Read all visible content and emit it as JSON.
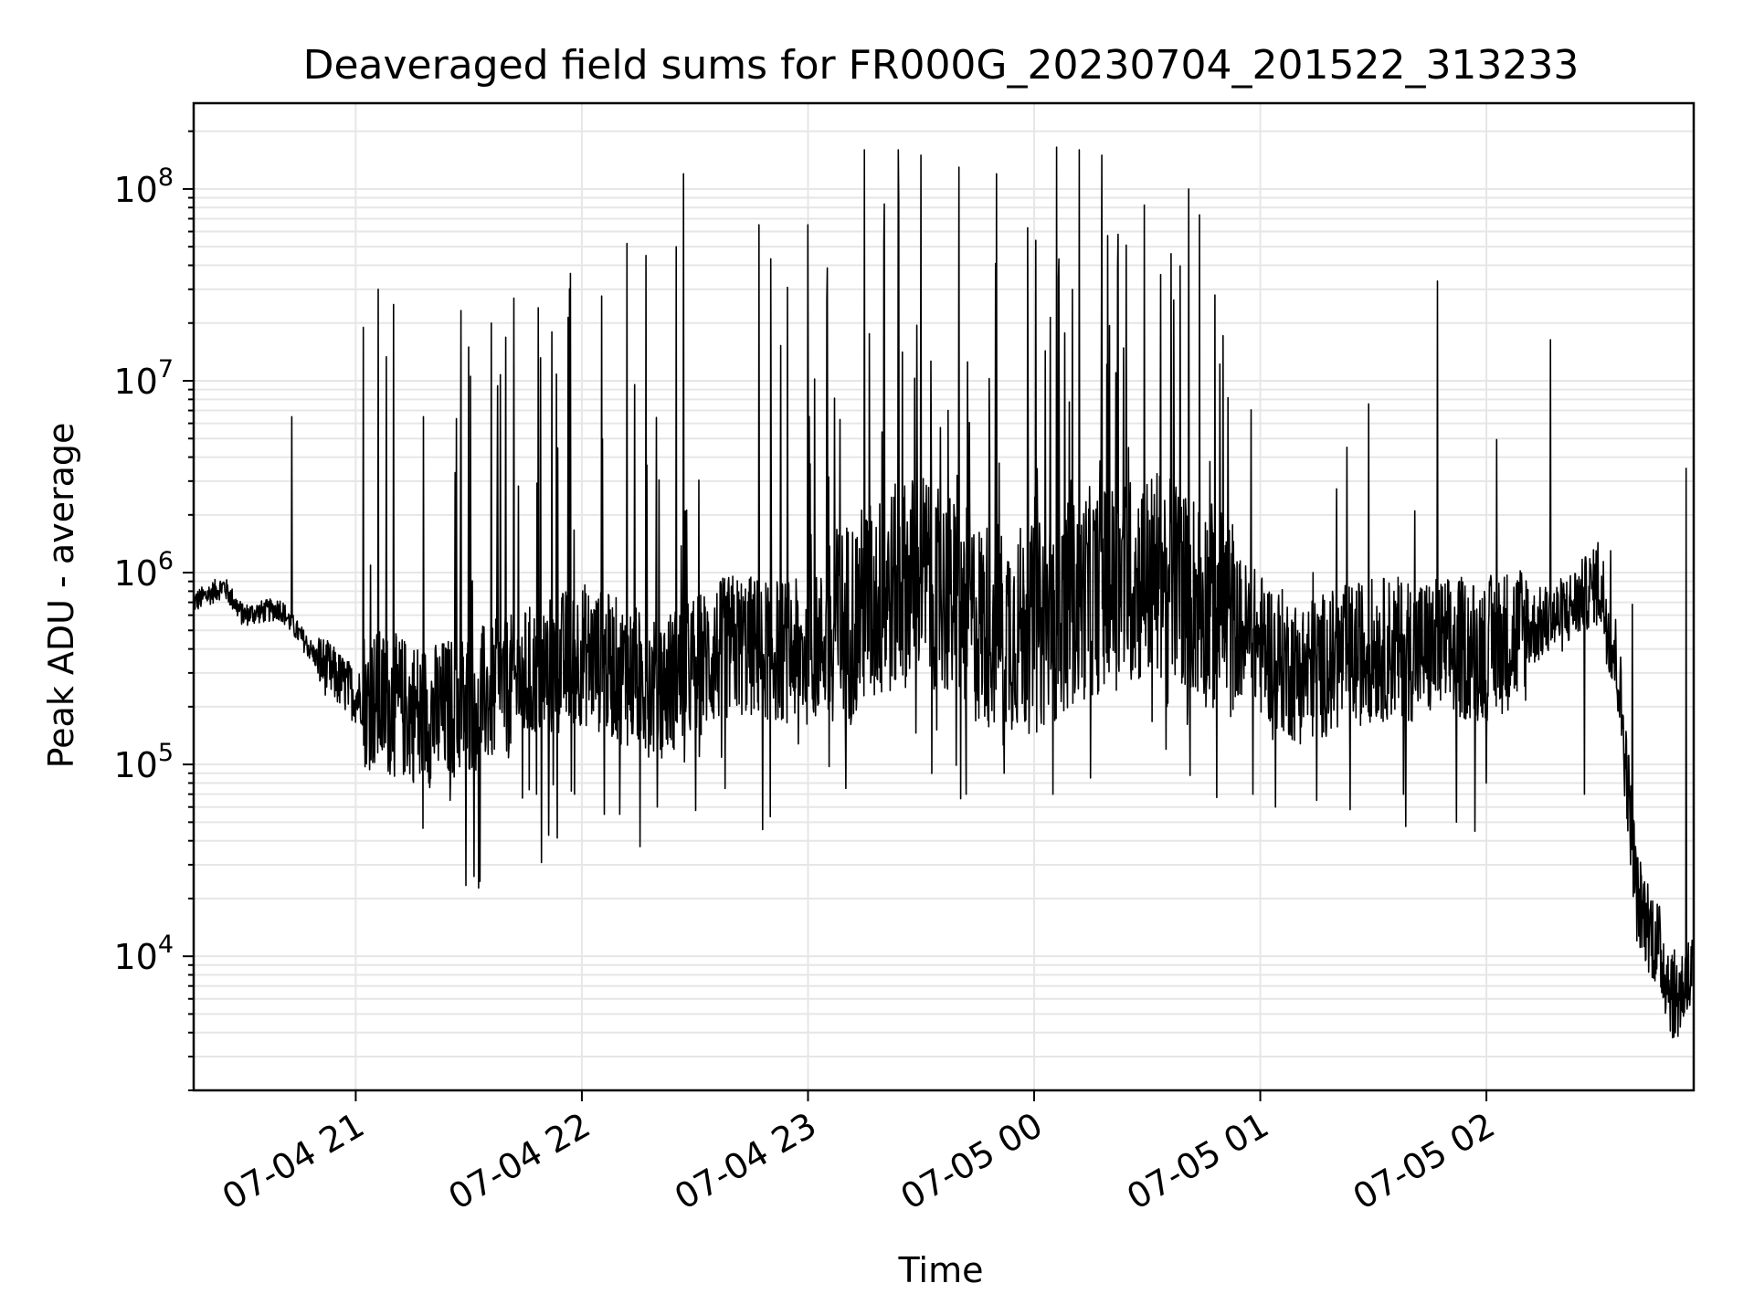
{
  "chart_data": {
    "type": "line",
    "title": "Deaveraged field sums for FR000G_20230704_201522_313233",
    "xlabel": "Time",
    "ylabel": "Peak ADU - average",
    "y_scale": "log",
    "grid": true,
    "line_color": "#000000",
    "x_start": "07-04 20:17",
    "x_end": "07-05 02:55",
    "ylim": [
      2000,
      280000000
    ],
    "x_ticks": [
      {
        "label": "07-04 21",
        "value": "07-04 21:00"
      },
      {
        "label": "07-04 22",
        "value": "07-04 22:00"
      },
      {
        "label": "07-04 23",
        "value": "07-04 23:00"
      },
      {
        "label": "07-05 00",
        "value": "07-05 00:00"
      },
      {
        "label": "07-05 01",
        "value": "07-05 01:00"
      },
      {
        "label": "07-05 02",
        "value": "07-05 02:00"
      }
    ],
    "y_ticks": [
      {
        "base": "10",
        "exp": "4",
        "value": 10000
      },
      {
        "base": "10",
        "exp": "5",
        "value": 100000
      },
      {
        "base": "10",
        "exp": "6",
        "value": 1000000
      },
      {
        "base": "10",
        "exp": "7",
        "value": 10000000
      },
      {
        "base": "10",
        "exp": "8",
        "value": 100000000
      }
    ],
    "series": [
      {
        "baseline": [
          [
            "07-04 20:17",
            700000
          ],
          [
            "07-04 20:25",
            850000
          ],
          [
            "07-04 20:30",
            600000
          ],
          [
            "07-04 20:40",
            650000
          ],
          [
            "07-04 20:50",
            350000
          ],
          [
            "07-04 21:00",
            230000
          ],
          [
            "07-04 21:20",
            180000
          ],
          [
            "07-04 21:40",
            250000
          ],
          [
            "07-04 22:00",
            380000
          ],
          [
            "07-04 22:20",
            250000
          ],
          [
            "07-04 22:40",
            420000
          ],
          [
            "07-04 23:00",
            380000
          ],
          [
            "07-04 23:15",
            650000
          ],
          [
            "07-04 23:30",
            1000000
          ],
          [
            "07-04 23:45",
            550000
          ],
          [
            "07-05 00:00",
            500000
          ],
          [
            "07-05 00:15",
            800000
          ],
          [
            "07-05 00:35",
            1000000
          ],
          [
            "07-05 00:50",
            600000
          ],
          [
            "07-05 01:10",
            300000
          ],
          [
            "07-05 01:30",
            400000
          ],
          [
            "07-05 02:00",
            400000
          ],
          [
            "07-05 02:20",
            600000
          ],
          [
            "07-05 02:30",
            900000
          ],
          [
            "07-05 02:35",
            300000
          ],
          [
            "07-05 02:40",
            20000
          ],
          [
            "07-05 02:45",
            12000
          ],
          [
            "07-05 02:50",
            6000
          ],
          [
            "07-05 02:55",
            8000
          ]
        ],
        "peaks": [
          [
            "07-04 20:43",
            6500000
          ],
          [
            "07-04 21:02",
            19000000
          ],
          [
            "07-04 21:06",
            30000000
          ],
          [
            "07-04 21:10",
            25000000
          ],
          [
            "07-04 21:18",
            6500000
          ],
          [
            "07-04 21:30",
            15000000
          ],
          [
            "07-04 21:36",
            20000000
          ],
          [
            "07-04 21:42",
            27000000
          ],
          [
            "07-04 21:52",
            18000000
          ],
          [
            "07-04 22:06",
            40000000
          ],
          [
            "07-04 22:12",
            52000000
          ],
          [
            "07-04 22:17",
            45000000
          ],
          [
            "07-04 22:25",
            50000000
          ],
          [
            "07-04 22:27",
            120000000
          ],
          [
            "07-04 22:47",
            65000000
          ],
          [
            "07-04 23:00",
            65000000
          ],
          [
            "07-04 23:10",
            140000000
          ],
          [
            "07-04 23:15",
            160000000
          ],
          [
            "07-04 23:24",
            160000000
          ],
          [
            "07-04 23:30",
            150000000
          ],
          [
            "07-04 23:40",
            130000000
          ],
          [
            "07-04 23:50",
            120000000
          ],
          [
            "07-05 00:06",
            165000000
          ],
          [
            "07-05 00:12",
            160000000
          ],
          [
            "07-05 00:18",
            150000000
          ],
          [
            "07-05 00:25",
            130000000
          ],
          [
            "07-05 00:41",
            100000000
          ],
          [
            "07-05 00:48",
            28000000
          ],
          [
            "07-05 00:58",
            9000000
          ],
          [
            "07-05 01:14",
            1000000
          ],
          [
            "07-05 01:23",
            4500000
          ],
          [
            "07-05 01:41",
            2100000
          ],
          [
            "07-05 02:33",
            1300000
          ]
        ],
        "troughs": [
          [
            "07-04 20:50",
            300000
          ],
          [
            "07-04 21:03",
            130000
          ],
          [
            "07-04 21:17",
            90000
          ],
          [
            "07-04 21:25",
            65000
          ],
          [
            "07-04 21:48",
            70000
          ],
          [
            "07-04 21:58",
            70000
          ],
          [
            "07-04 22:06",
            55000
          ],
          [
            "07-04 22:10",
            55000
          ],
          [
            "07-04 22:14",
            55000
          ],
          [
            "07-04 22:20",
            60000
          ],
          [
            "07-04 22:38",
            75000
          ],
          [
            "07-04 22:50",
            70000
          ],
          [
            "07-04 23:10",
            75000
          ],
          [
            "07-04 23:42",
            70000
          ],
          [
            "07-04 23:52",
            90000
          ],
          [
            "07-05 00:05",
            70000
          ],
          [
            "07-05 00:15",
            85000
          ],
          [
            "07-05 00:35",
            120000
          ],
          [
            "07-05 00:58",
            70000
          ],
          [
            "07-05 01:04",
            60000
          ],
          [
            "07-05 01:15",
            65000
          ],
          [
            "07-05 01:38",
            70000
          ],
          [
            "07-05 01:52",
            50000
          ],
          [
            "07-05 02:00",
            80000
          ],
          [
            "07-05 02:26",
            70000
          ],
          [
            "07-05 02:53",
            3500000
          ]
        ]
      }
    ]
  }
}
